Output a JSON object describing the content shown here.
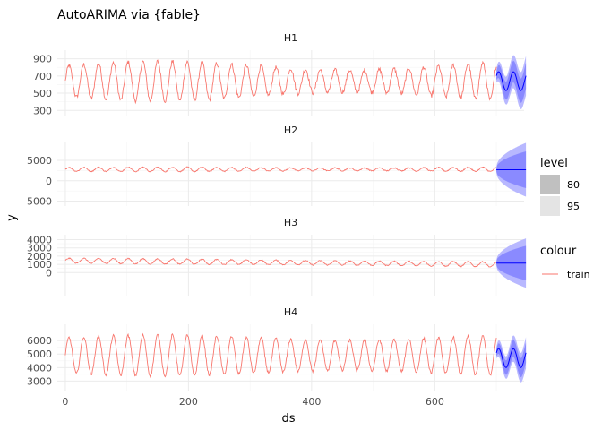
{
  "chart_data": {
    "type": "line",
    "title": "AutoARIMA via {fable}",
    "xlabel": "ds",
    "ylabel": "y",
    "xlim": [
      -13,
      745
    ],
    "xticks": [
      0,
      200,
      400,
      600
    ],
    "train_end": 700,
    "forecast_end": 748,
    "colors": {
      "train": "#f8766d",
      "forecast": "#0000ff",
      "band95": "#b8b8ff",
      "band80": "#8a8aff"
    },
    "panels": [
      {
        "name": "H1",
        "ylim": [
          230,
          1000
        ],
        "yticks": [
          300,
          500,
          700,
          900
        ],
        "train": {
          "mean": 640,
          "amp": 230,
          "period": 24,
          "drift": 0,
          "amp_mod": [
            0.55,
            1.0
          ],
          "noise": 25
        },
        "forecast": {
          "base": 640,
          "amp": 110,
          "period": 24,
          "half80_start": 45,
          "half80_end": 150,
          "half95_start": 70,
          "half95_end": 230
        }
      },
      {
        "name": "H2",
        "ylim": [
          -6200,
          9400
        ],
        "yticks": [
          -5000,
          0,
          5000
        ],
        "train": {
          "mean": 2800,
          "amp": 500,
          "period": 24,
          "drift": 0,
          "amp_mod": [
            0.7,
            1.1
          ],
          "noise": 120
        },
        "forecast": {
          "base": 2700,
          "amp": 0,
          "period": 24,
          "half80_start": 400,
          "half80_end": 4500,
          "half95_start": 600,
          "half95_end": 6600
        }
      },
      {
        "name": "H3",
        "ylim": [
          -2800,
          4600
        ],
        "yticks": [
          0,
          1000,
          2000,
          3000,
          4000
        ],
        "train": {
          "mean": 1450,
          "amp": 320,
          "period": 24,
          "drift": -450,
          "amp_mod": [
            0.8,
            1.0
          ],
          "noise": 60
        },
        "forecast": {
          "base": 1150,
          "amp": 0,
          "period": 24,
          "half80_start": 200,
          "half80_end": 2100,
          "half95_start": 300,
          "half95_end": 3000
        }
      },
      {
        "name": "H4",
        "ylim": [
          2300,
          7200
        ],
        "yticks": [
          3000,
          4000,
          5000,
          6000
        ],
        "train": {
          "mean": 4900,
          "amp": 1500,
          "period": 24,
          "drift": 0,
          "amp_mod": [
            0.75,
            1.0
          ],
          "noise": 100
        },
        "forecast": {
          "base": 4700,
          "amp": 700,
          "period": 24,
          "half80_start": 250,
          "half80_end": 750,
          "half95_start": 400,
          "half95_end": 1150
        }
      }
    ],
    "legend": {
      "level_title": "level",
      "level_items": [
        {
          "label": "80",
          "color": "#c0c0c0"
        },
        {
          "label": "95",
          "color": "#e4e4e4"
        }
      ],
      "colour_title": "colour",
      "colour_items": [
        {
          "label": "train",
          "color": "#f8766d"
        }
      ]
    }
  }
}
